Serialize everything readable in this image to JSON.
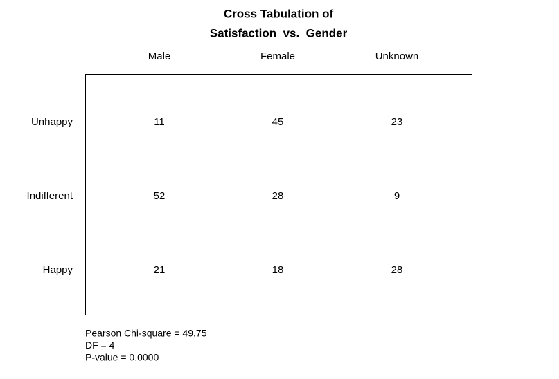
{
  "header": {
    "title": [
      "Cross Tabulation of",
      "Satisfaction  vs.  Gender"
    ]
  },
  "table": {
    "columns": [
      "Male",
      "Female",
      "Unknown"
    ],
    "row_labels": [
      "Unhappy",
      "Indifferent",
      "Happy"
    ],
    "rows": [
      [
        11,
        45,
        23
      ],
      [
        52,
        28,
        9
      ],
      [
        21,
        18,
        28
      ]
    ]
  },
  "stats": [
    "Pearson Chi-square = 49.75",
    "DF = 4",
    "P-value = 0.0000"
  ]
}
